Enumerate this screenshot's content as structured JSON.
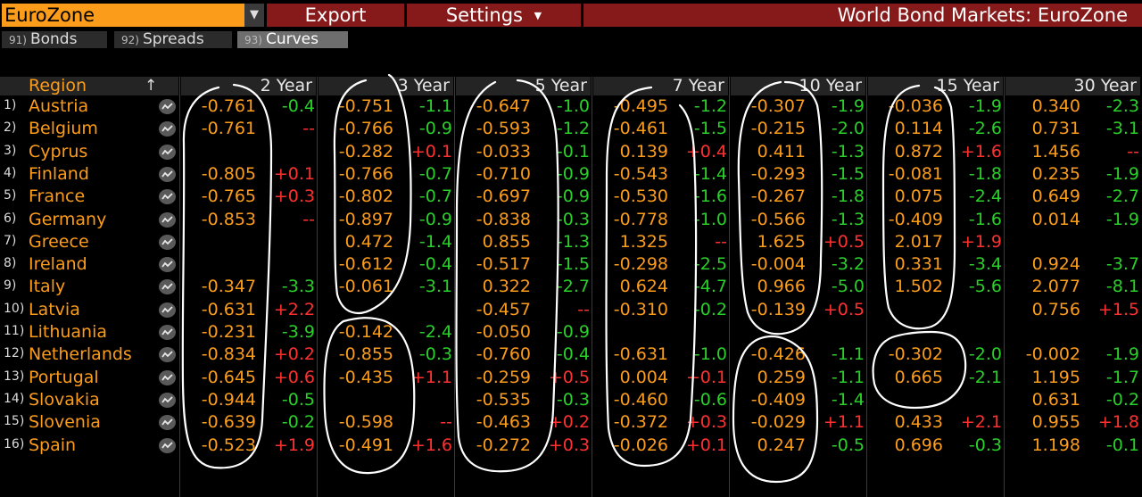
{
  "header": {
    "region_value": "EuroZone",
    "export_label": "Export",
    "settings_label": "Settings",
    "title": "World Bond Markets: EuroZone"
  },
  "tabs": [
    {
      "num": "91)",
      "label": "Bonds"
    },
    {
      "num": "92)",
      "label": "Spreads"
    },
    {
      "num": "93)",
      "label": "Curves"
    }
  ],
  "columns": {
    "region": "Region",
    "tenors": [
      "2 Year",
      "3 Year",
      "5 Year",
      "7 Year",
      "10 Year",
      "15 Year",
      "30 Year"
    ]
  },
  "rows": [
    {
      "num": "1)",
      "name": "Austria",
      "cells": [
        [
          "-0.761",
          "-0.4"
        ],
        [
          "-0.751",
          "-1.1"
        ],
        [
          "-0.647",
          "-1.0"
        ],
        [
          "-0.495",
          "-1.2"
        ],
        [
          "-0.307",
          "-1.9"
        ],
        [
          "-0.036",
          "-1.9"
        ],
        [
          "0.340",
          "-2.3"
        ]
      ]
    },
    {
      "num": "2)",
      "name": "Belgium",
      "cells": [
        [
          "-0.761",
          "--"
        ],
        [
          "-0.766",
          "-0.9"
        ],
        [
          "-0.593",
          "-1.2"
        ],
        [
          "-0.461",
          "-1.5"
        ],
        [
          "-0.215",
          "-2.0"
        ],
        [
          "0.114",
          "-2.6"
        ],
        [
          "0.731",
          "-3.1"
        ]
      ]
    },
    {
      "num": "3)",
      "name": "Cyprus",
      "cells": [
        [
          "",
          ""
        ],
        [
          "-0.282",
          "+0.1"
        ],
        [
          "-0.033",
          "-0.1"
        ],
        [
          "0.139",
          "+0.4"
        ],
        [
          "0.411",
          "-1.3"
        ],
        [
          "0.872",
          "+1.6"
        ],
        [
          "1.456",
          "--"
        ]
      ]
    },
    {
      "num": "4)",
      "name": "Finland",
      "cells": [
        [
          "-0.805",
          "+0.1"
        ],
        [
          "-0.766",
          "-0.7"
        ],
        [
          "-0.710",
          "-0.9"
        ],
        [
          "-0.543",
          "-1.4"
        ],
        [
          "-0.293",
          "-1.5"
        ],
        [
          "-0.081",
          "-1.8"
        ],
        [
          "0.235",
          "-1.9"
        ]
      ]
    },
    {
      "num": "5)",
      "name": "France",
      "cells": [
        [
          "-0.765",
          "+0.3"
        ],
        [
          "-0.802",
          "-0.7"
        ],
        [
          "-0.697",
          "-0.9"
        ],
        [
          "-0.530",
          "-1.6"
        ],
        [
          "-0.267",
          "-1.8"
        ],
        [
          "0.075",
          "-2.4"
        ],
        [
          "0.649",
          "-2.7"
        ]
      ]
    },
    {
      "num": "6)",
      "name": "Germany",
      "cells": [
        [
          "-0.853",
          "--"
        ],
        [
          "-0.897",
          "-0.9"
        ],
        [
          "-0.838",
          "-0.3"
        ],
        [
          "-0.778",
          "-1.0"
        ],
        [
          "-0.566",
          "-1.3"
        ],
        [
          "-0.409",
          "-1.6"
        ],
        [
          "0.014",
          "-1.9"
        ]
      ]
    },
    {
      "num": "7)",
      "name": "Greece",
      "cells": [
        [
          "",
          ""
        ],
        [
          "0.472",
          "-1.4"
        ],
        [
          "0.855",
          "-1.3"
        ],
        [
          "1.325",
          "--"
        ],
        [
          "1.625",
          "+0.5"
        ],
        [
          "2.017",
          "+1.9"
        ],
        [
          "",
          ""
        ]
      ]
    },
    {
      "num": "8)",
      "name": "Ireland",
      "cells": [
        [
          "",
          ""
        ],
        [
          "-0.612",
          "-0.4"
        ],
        [
          "-0.517",
          "-1.5"
        ],
        [
          "-0.298",
          "-2.5"
        ],
        [
          "-0.004",
          "-3.2"
        ],
        [
          "0.331",
          "-3.4"
        ],
        [
          "0.924",
          "-3.7"
        ]
      ]
    },
    {
      "num": "9)",
      "name": "Italy",
      "cells": [
        [
          "-0.347",
          "-3.3"
        ],
        [
          "-0.061",
          "-3.1"
        ],
        [
          "0.322",
          "-2.7"
        ],
        [
          "0.624",
          "-4.7"
        ],
        [
          "0.966",
          "-5.0"
        ],
        [
          "1.502",
          "-5.6"
        ],
        [
          "2.077",
          "-8.1"
        ]
      ]
    },
    {
      "num": "10)",
      "name": "Latvia",
      "cells": [
        [
          "-0.631",
          "+2.2"
        ],
        [
          "",
          ""
        ],
        [
          "-0.457",
          "--"
        ],
        [
          "-0.310",
          "-0.2"
        ],
        [
          "-0.139",
          "+0.5"
        ],
        [
          "",
          ""
        ],
        [
          "0.756",
          "+1.5"
        ]
      ]
    },
    {
      "num": "11)",
      "name": "Lithuania",
      "cells": [
        [
          "-0.231",
          "-3.9"
        ],
        [
          "-0.142",
          "-2.4"
        ],
        [
          "-0.050",
          "-0.9"
        ],
        [
          "",
          ""
        ],
        [
          "",
          ""
        ],
        [
          "",
          ""
        ],
        [
          "",
          ""
        ]
      ]
    },
    {
      "num": "12)",
      "name": "Netherlands",
      "cells": [
        [
          "-0.834",
          "+0.2"
        ],
        [
          "-0.855",
          "-0.3"
        ],
        [
          "-0.760",
          "-0.4"
        ],
        [
          "-0.631",
          "-1.0"
        ],
        [
          "-0.426",
          "-1.1"
        ],
        [
          "-0.302",
          "-2.0"
        ],
        [
          "-0.002",
          "-1.9"
        ]
      ]
    },
    {
      "num": "13)",
      "name": "Portugal",
      "cells": [
        [
          "-0.645",
          "+0.6"
        ],
        [
          "-0.435",
          "+1.1"
        ],
        [
          "-0.259",
          "+0.5"
        ],
        [
          "0.004",
          "+0.1"
        ],
        [
          "0.259",
          "-1.1"
        ],
        [
          "0.665",
          "-2.1"
        ],
        [
          "1.195",
          "-1.7"
        ]
      ]
    },
    {
      "num": "14)",
      "name": "Slovakia",
      "cells": [
        [
          "-0.944",
          "-0.5"
        ],
        [
          "",
          ""
        ],
        [
          "-0.535",
          "-0.3"
        ],
        [
          "-0.460",
          "-0.6"
        ],
        [
          "-0.409",
          "-1.4"
        ],
        [
          "",
          ""
        ],
        [
          "0.631",
          "-0.2"
        ]
      ]
    },
    {
      "num": "15)",
      "name": "Slovenia",
      "cells": [
        [
          "-0.639",
          "-0.2"
        ],
        [
          "-0.598",
          "--"
        ],
        [
          "-0.463",
          "+0.2"
        ],
        [
          "-0.372",
          "+0.3"
        ],
        [
          "-0.029",
          "+1.1"
        ],
        [
          "0.433",
          "+2.1"
        ],
        [
          "0.955",
          "+1.8"
        ]
      ]
    },
    {
      "num": "16)",
      "name": "Spain",
      "cells": [
        [
          "-0.523",
          "+1.9"
        ],
        [
          "-0.491",
          "+1.6"
        ],
        [
          "-0.272",
          "+0.3"
        ],
        [
          "-0.026",
          "+0.1"
        ],
        [
          "0.247",
          "-0.5"
        ],
        [
          "0.696",
          "-0.3"
        ],
        [
          "1.198",
          "-0.1"
        ]
      ]
    }
  ],
  "colors": {
    "accent_orange": "#fb9c1a",
    "brand_red": "#861a1a",
    "positive_change": "#ff3030",
    "negative_change": "#29d029"
  },
  "icons": [
    "dropdown-arrow-icon",
    "settings-caret-icon",
    "sort-arrow-icon",
    "chart-icon"
  ]
}
